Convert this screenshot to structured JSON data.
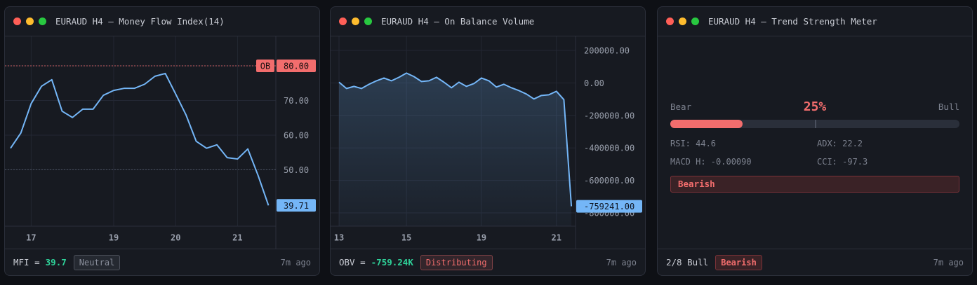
{
  "chart_data": [
    {
      "type": "line",
      "title": "EURAUD H4 — Money Flow Index(14)",
      "color": "#74b6f7",
      "area": false,
      "categories": [
        null,
        null,
        "17",
        null,
        null,
        null,
        null,
        null,
        null,
        null,
        "19",
        null,
        null,
        null,
        null,
        null,
        "20",
        null,
        null,
        null,
        null,
        null,
        "21",
        null,
        null,
        null
      ],
      "values": [
        56.2,
        60.6,
        69.1,
        74.1,
        76.0,
        66.9,
        65.1,
        67.5,
        67.5,
        71.5,
        72.9,
        73.5,
        73.5,
        74.7,
        77.0,
        77.8,
        71.9,
        65.9,
        58.2,
        56.2,
        57.2,
        53.5,
        53.1,
        56.0,
        48.3,
        39.71
      ],
      "last_value_label": "39.71",
      "ylim": [
        33.7,
        88.5
      ],
      "yticks": [
        {
          "value": 50,
          "label": "50.00"
        },
        {
          "value": 60,
          "label": "60.00"
        },
        {
          "value": 70,
          "label": "70.00"
        },
        {
          "value": 80,
          "label": "80.00"
        }
      ],
      "levels": [
        {
          "value": 80,
          "label": "OB",
          "color": "#f26d6d"
        },
        {
          "value": 50,
          "color": "#5a5f70"
        }
      ],
      "grid": true,
      "footer": {
        "label": "MFI =",
        "value": "39.7",
        "badge": "Neutral",
        "badge_color": "#8a8f9c",
        "time": "7m ago"
      }
    },
    {
      "type": "line",
      "title": "EURAUD H4 — On Balance Volume",
      "color": "#74b6f7",
      "area": true,
      "categories": [
        "13",
        null,
        null,
        null,
        null,
        null,
        null,
        null,
        null,
        "15",
        null,
        null,
        null,
        null,
        null,
        null,
        null,
        null,
        null,
        "19",
        null,
        null,
        null,
        null,
        null,
        null,
        null,
        null,
        null,
        "21",
        null,
        null
      ],
      "values": [
        4300,
        -34400,
        -21500,
        -34400,
        -8600,
        12900,
        30100,
        12900,
        34400,
        60200,
        38700,
        8600,
        12900,
        34400,
        4300,
        -30100,
        4300,
        -21500,
        -4300,
        30100,
        12900,
        -25800,
        -8600,
        -30100,
        -47300,
        -68800,
        -98900,
        -77400,
        -73100,
        -51600,
        -103200,
        -759241
      ],
      "last_value_label": "-759241.00",
      "ylim": [
        -881700,
        286000
      ],
      "yticks": [
        {
          "value": -800000,
          "label": "-800000.00"
        },
        {
          "value": -600000,
          "label": "-600000.00"
        },
        {
          "value": -400000,
          "label": "-400000.00"
        },
        {
          "value": -200000,
          "label": "-200000.00"
        },
        {
          "value": 0,
          "label": "0.00"
        },
        {
          "value": 200000,
          "label": "200000.00"
        }
      ],
      "levels": [],
      "grid": true,
      "footer": {
        "label": "OBV =",
        "value": "-759.24K",
        "badge": "Distributing",
        "badge_color": "#f26d6d",
        "time": "7m ago"
      }
    }
  ],
  "meter": {
    "title": "EURAUD H4 — Trend Strength Meter",
    "min_label": "Bear",
    "max_label": "Bull",
    "value": 25,
    "value_label": "25%",
    "range": [
      0,
      100
    ],
    "marker": 50,
    "color": "#f26d6d",
    "stats": [
      "RSI: 44.6",
      "ADX: 22.2",
      "MACD H: -0.00090",
      "CCI: -97.3"
    ],
    "signal": "Bearish",
    "footer": {
      "label": "2/8 Bull",
      "badge": "Bearish",
      "time": "7m ago"
    }
  }
}
